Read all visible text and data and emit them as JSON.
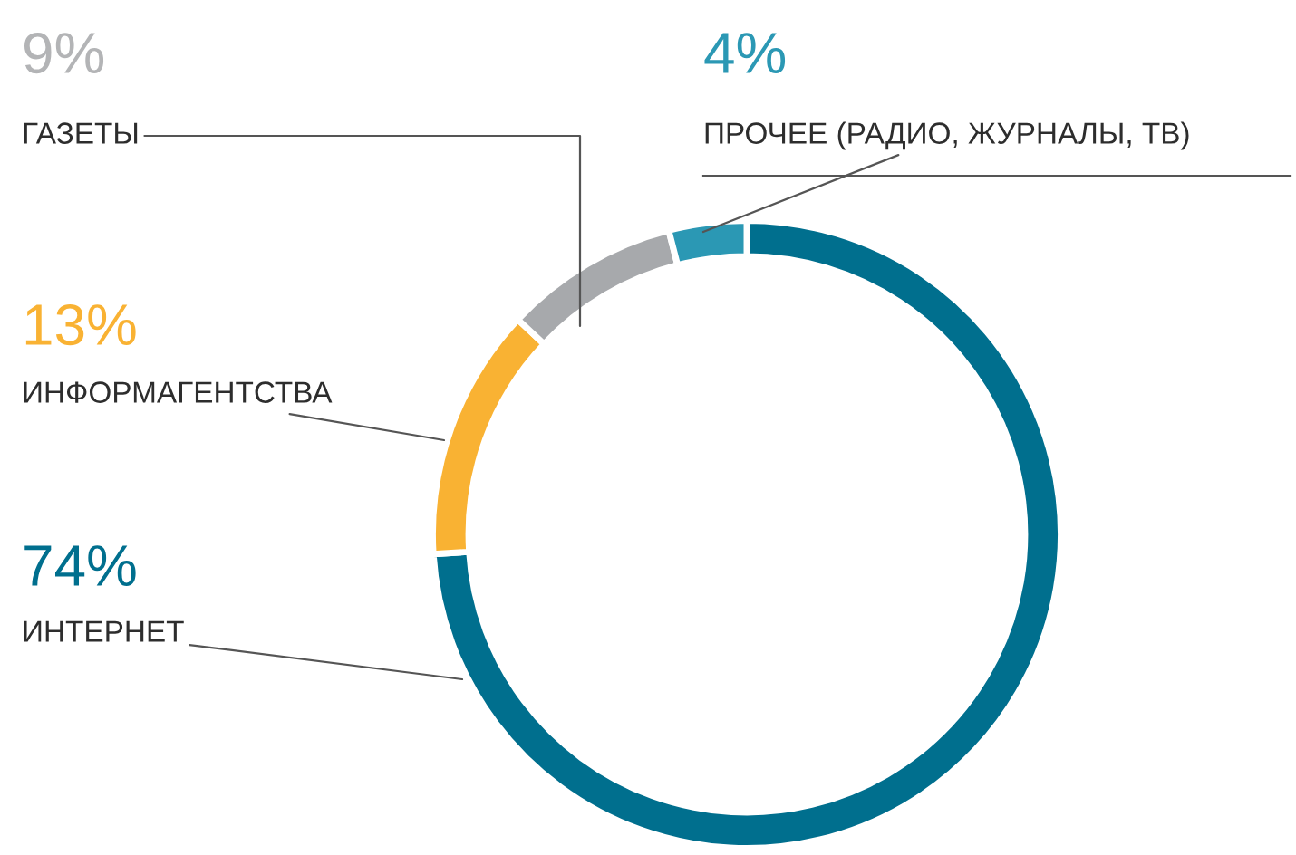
{
  "chart_data": {
    "type": "donut",
    "categories": [
      "ИНТЕРНЕТ",
      "ИНФОРМАГЕНТСТВА",
      "ГАЗЕТЫ",
      "ПРОЧЕЕ (РАДИО, ЖУРНАЛЫ, ТВ)"
    ],
    "values": [
      74,
      13,
      9,
      4
    ],
    "value_labels": [
      "74%",
      "13%",
      "9%",
      "4%"
    ],
    "colors": [
      "#006f8e",
      "#f9b233",
      "#a7a9ac",
      "#2b98b4"
    ],
    "legend": false
  }
}
